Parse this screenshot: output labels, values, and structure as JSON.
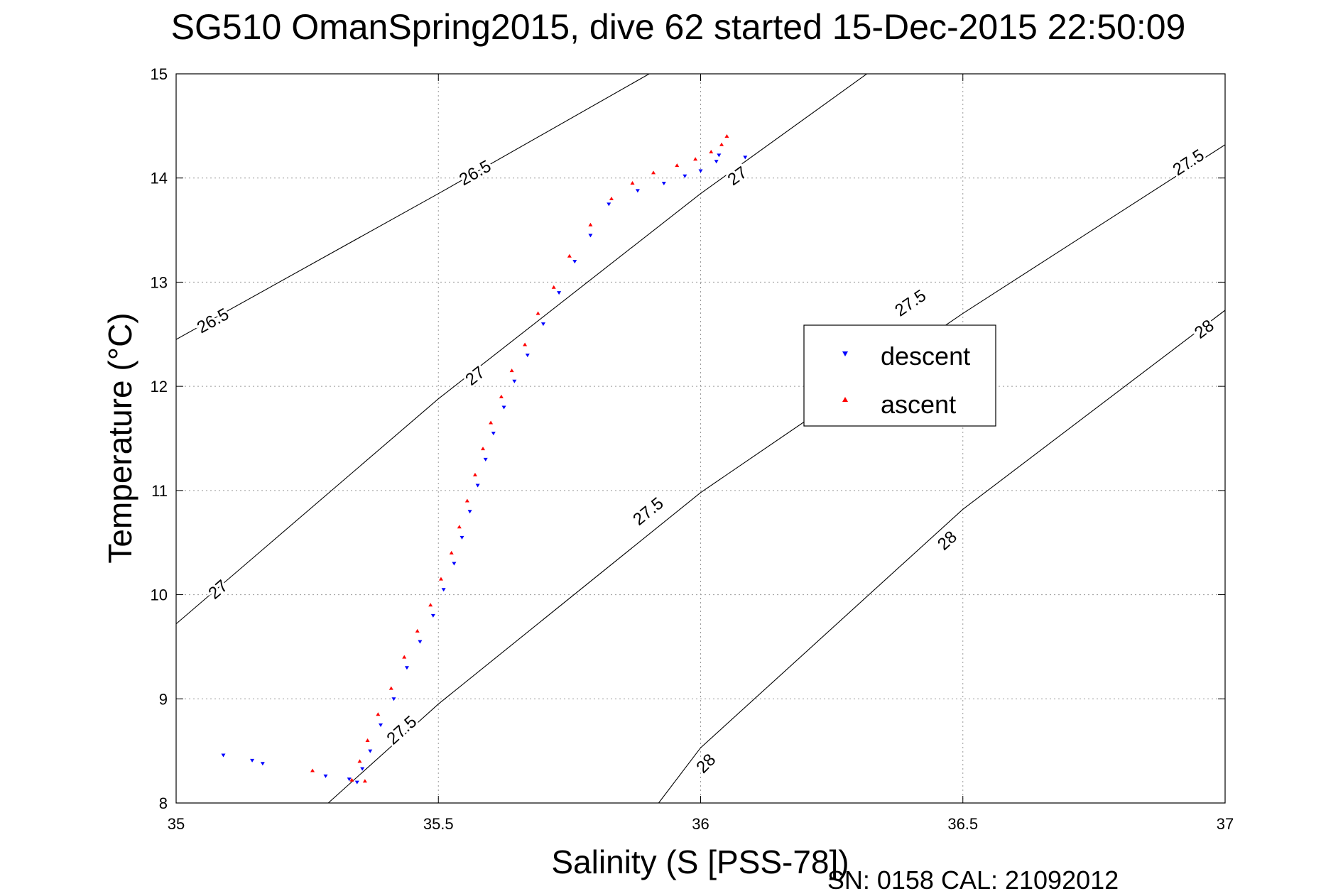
{
  "chart_data": {
    "type": "scatter",
    "title": "SG510 OmanSpring2015, dive 62 started 15-Dec-2015 22:50:09",
    "xlabel": "Salinity (S [PSS-78])",
    "ylabel": "Temperature (°C)",
    "xlim": [
      35,
      37
    ],
    "ylim": [
      8,
      15
    ],
    "xticks": [
      35,
      35.5,
      36,
      36.5,
      37
    ],
    "xtick_labels": [
      "35",
      "35.5",
      "36",
      "36.5",
      "37"
    ],
    "yticks": [
      8,
      9,
      10,
      11,
      12,
      13,
      14,
      15
    ],
    "ytick_labels": [
      "8",
      "9",
      "10",
      "11",
      "12",
      "13",
      "14",
      "15"
    ],
    "grid": true,
    "legend_position": "right-center",
    "footer": "SN: 0158  CAL: 21092012",
    "colors": {
      "descent": "#0000ff",
      "ascent": "#ff0000",
      "isopycnal": "#000000",
      "grid": "#9a9a9a"
    },
    "isopycnals": [
      {
        "label": "26.5",
        "points": [
          [
            35.0,
            12.45
          ],
          [
            35.5,
            13.85
          ],
          [
            36.0,
            15.28
          ]
        ],
        "label_at": [
          [
            35.07,
            12.63
          ],
          [
            35.57,
            14.05
          ]
        ]
      },
      {
        "label": "27",
        "points": [
          [
            35.0,
            9.72
          ],
          [
            35.5,
            11.88
          ],
          [
            36.0,
            13.85
          ],
          [
            36.35,
            15.12
          ]
        ],
        "label_at": [
          [
            35.08,
            10.05
          ],
          [
            35.57,
            12.1
          ],
          [
            36.07,
            14.02
          ]
        ]
      },
      {
        "label": "27.5",
        "points": [
          [
            35.29,
            8.0
          ],
          [
            35.5,
            8.95
          ],
          [
            36.0,
            10.98
          ],
          [
            36.5,
            12.7
          ],
          [
            37.0,
            14.32
          ]
        ],
        "label_at": [
          [
            35.43,
            8.7
          ],
          [
            35.9,
            10.8
          ],
          [
            36.4,
            12.8
          ],
          [
            36.93,
            14.15
          ]
        ]
      },
      {
        "label": "28",
        "points": [
          [
            35.92,
            8.0
          ],
          [
            36.0,
            8.53
          ],
          [
            36.5,
            10.82
          ],
          [
            37.0,
            12.73
          ]
        ],
        "label_at": [
          [
            36.01,
            8.38
          ],
          [
            36.47,
            10.52
          ],
          [
            36.96,
            12.55
          ]
        ]
      }
    ],
    "series": [
      {
        "name": "descent",
        "marker": "triangle-down",
        "color": "#0000ff",
        "points": [
          [
            35.09,
            8.46
          ],
          [
            35.145,
            8.41
          ],
          [
            35.165,
            8.38
          ],
          [
            35.285,
            8.26
          ],
          [
            35.33,
            8.23
          ],
          [
            35.345,
            8.2
          ],
          [
            35.355,
            8.33
          ],
          [
            35.37,
            8.5
          ],
          [
            35.39,
            8.75
          ],
          [
            35.415,
            9.0
          ],
          [
            35.44,
            9.3
          ],
          [
            35.465,
            9.55
          ],
          [
            35.49,
            9.8
          ],
          [
            35.51,
            10.05
          ],
          [
            35.53,
            10.3
          ],
          [
            35.545,
            10.55
          ],
          [
            35.56,
            10.8
          ],
          [
            35.575,
            11.05
          ],
          [
            35.59,
            11.3
          ],
          [
            35.605,
            11.55
          ],
          [
            35.625,
            11.8
          ],
          [
            35.645,
            12.05
          ],
          [
            35.67,
            12.3
          ],
          [
            35.7,
            12.6
          ],
          [
            35.73,
            12.9
          ],
          [
            35.76,
            13.2
          ],
          [
            35.79,
            13.45
          ],
          [
            35.825,
            13.75
          ],
          [
            35.88,
            13.88
          ],
          [
            35.93,
            13.95
          ],
          [
            35.97,
            14.02
          ],
          [
            36.0,
            14.07
          ],
          [
            36.03,
            14.16
          ],
          [
            36.035,
            14.22
          ],
          [
            36.085,
            14.2
          ]
        ]
      },
      {
        "name": "ascent",
        "marker": "triangle-up",
        "color": "#ff0000",
        "points": [
          [
            35.26,
            8.31
          ],
          [
            35.335,
            8.22
          ],
          [
            35.36,
            8.21
          ],
          [
            35.35,
            8.4
          ],
          [
            35.365,
            8.6
          ],
          [
            35.385,
            8.85
          ],
          [
            35.41,
            9.1
          ],
          [
            35.435,
            9.4
          ],
          [
            35.46,
            9.65
          ],
          [
            35.485,
            9.9
          ],
          [
            35.505,
            10.15
          ],
          [
            35.525,
            10.4
          ],
          [
            35.54,
            10.65
          ],
          [
            35.555,
            10.9
          ],
          [
            35.57,
            11.15
          ],
          [
            35.585,
            11.4
          ],
          [
            35.6,
            11.65
          ],
          [
            35.62,
            11.9
          ],
          [
            35.64,
            12.15
          ],
          [
            35.665,
            12.4
          ],
          [
            35.69,
            12.7
          ],
          [
            35.72,
            12.95
          ],
          [
            35.75,
            13.25
          ],
          [
            35.79,
            13.55
          ],
          [
            35.83,
            13.8
          ],
          [
            35.87,
            13.95
          ],
          [
            35.91,
            14.05
          ],
          [
            35.955,
            14.12
          ],
          [
            35.99,
            14.18
          ],
          [
            36.02,
            14.25
          ],
          [
            36.04,
            14.32
          ],
          [
            36.05,
            14.4
          ]
        ]
      }
    ]
  }
}
